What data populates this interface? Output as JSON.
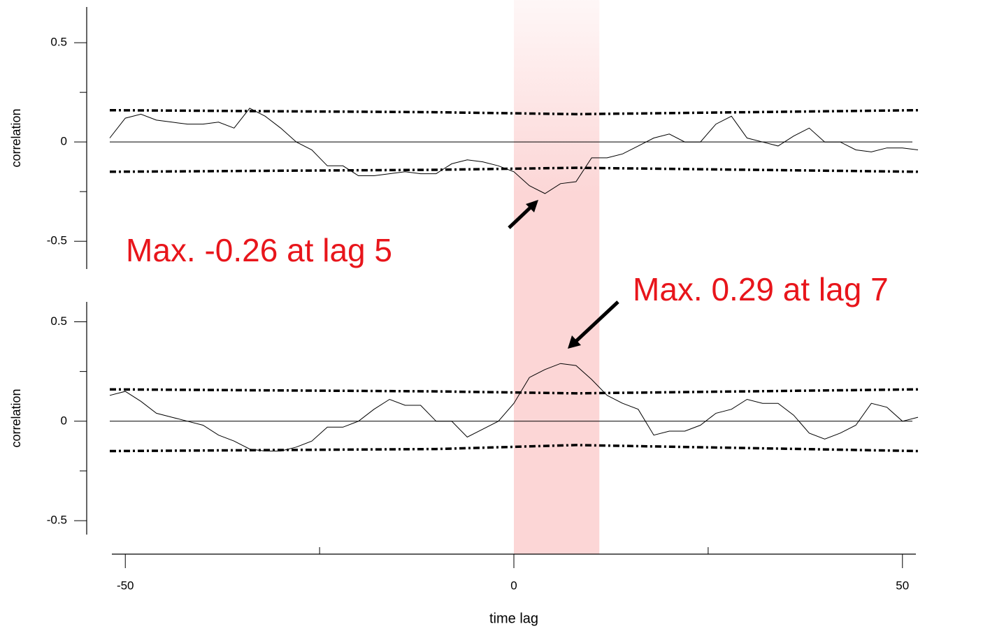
{
  "chart_data": [
    {
      "type": "line",
      "ylabel": "correlation",
      "annotation": "Max. -0.26 at lag 5",
      "xlim": [
        -52,
        52
      ],
      "ylim": [
        -0.64,
        0.68
      ],
      "yticks": [
        0.5,
        0,
        -0.5
      ],
      "minor_yticks": [
        0.25,
        -0.25
      ],
      "highlight_x": [
        0,
        11
      ],
      "zero_line": true,
      "series": [
        {
          "style": "solid",
          "color": "#000000",
          "x": [
            -52,
            -50,
            -48,
            -46,
            -44,
            -42,
            -40,
            -38,
            -36,
            -34,
            -32,
            -30,
            -28,
            -26,
            -24,
            -22,
            -20,
            -18,
            -16,
            -14,
            -12,
            -10,
            -8,
            -6,
            -4,
            -2,
            0,
            2,
            4,
            6,
            8,
            10,
            12,
            14,
            16,
            18,
            20,
            22,
            24,
            26,
            28,
            30,
            32,
            34,
            36,
            38,
            40,
            42,
            44,
            46,
            48,
            50,
            52
          ],
          "values": [
            0.02,
            0.12,
            0.14,
            0.11,
            0.1,
            0.09,
            0.09,
            0.1,
            0.07,
            0.17,
            0.13,
            0.07,
            0.0,
            -0.04,
            -0.12,
            -0.12,
            -0.17,
            -0.17,
            -0.16,
            -0.15,
            -0.16,
            -0.16,
            -0.11,
            -0.09,
            -0.1,
            -0.12,
            -0.15,
            -0.22,
            -0.26,
            -0.21,
            -0.2,
            -0.08,
            -0.08,
            -0.06,
            -0.02,
            0.02,
            0.04,
            0.0,
            0.0,
            0.09,
            0.13,
            0.02,
            0.0,
            -0.02,
            0.03,
            0.07,
            0.0,
            0.0,
            -0.04,
            -0.05,
            -0.03,
            -0.03,
            -0.04
          ]
        },
        {
          "style": "dotted",
          "color": "#000000",
          "x": [
            -52,
            -10,
            8,
            52
          ],
          "values": [
            0.16,
            0.15,
            0.14,
            0.16
          ]
        },
        {
          "style": "dotted",
          "color": "#000000",
          "x": [
            -52,
            -10,
            8,
            52
          ],
          "values": [
            -0.15,
            -0.14,
            -0.13,
            -0.15
          ]
        }
      ]
    },
    {
      "type": "line",
      "ylabel": "correlation",
      "xlabel": "time lag",
      "annotation": "Max. 0.29 at lag 7",
      "xlim": [
        -52,
        52
      ],
      "ylim": [
        -0.57,
        0.6
      ],
      "yticks": [
        0.5,
        0,
        -0.5
      ],
      "minor_yticks": [
        0.25,
        -0.25
      ],
      "xticks": [
        -50,
        0,
        50
      ],
      "minor_xticks": [
        -25,
        25
      ],
      "zero_line": true,
      "series": [
        {
          "style": "solid",
          "color": "#000000",
          "x": [
            -52,
            -50,
            -48,
            -46,
            -44,
            -42,
            -40,
            -38,
            -36,
            -34,
            -32,
            -30,
            -28,
            -26,
            -24,
            -22,
            -20,
            -18,
            -16,
            -14,
            -12,
            -10,
            -8,
            -6,
            -4,
            -2,
            0,
            2,
            4,
            6,
            8,
            10,
            12,
            14,
            16,
            18,
            20,
            22,
            24,
            26,
            28,
            30,
            32,
            34,
            36,
            38,
            40,
            42,
            44,
            46,
            48,
            50,
            52
          ],
          "values": [
            0.13,
            0.15,
            0.1,
            0.04,
            0.02,
            0.0,
            -0.02,
            -0.07,
            -0.1,
            -0.14,
            -0.15,
            -0.15,
            -0.13,
            -0.1,
            -0.03,
            -0.03,
            0.0,
            0.06,
            0.11,
            0.08,
            0.08,
            0.0,
            0.0,
            -0.08,
            -0.04,
            0.0,
            0.09,
            0.22,
            0.26,
            0.29,
            0.28,
            0.21,
            0.13,
            0.09,
            0.06,
            -0.07,
            -0.05,
            -0.05,
            -0.02,
            0.04,
            0.06,
            0.11,
            0.09,
            0.09,
            0.03,
            -0.06,
            -0.09,
            -0.06,
            -0.02,
            0.09,
            0.07,
            0.0,
            0.02
          ]
        },
        {
          "style": "dotted",
          "color": "#000000",
          "x": [
            -52,
            -10,
            8,
            52
          ],
          "values": [
            0.16,
            0.15,
            0.14,
            0.16
          ]
        },
        {
          "style": "dotted",
          "color": "#000000",
          "x": [
            -52,
            -10,
            8,
            52
          ],
          "values": [
            -0.15,
            -0.14,
            -0.12,
            -0.15
          ]
        }
      ]
    }
  ]
}
